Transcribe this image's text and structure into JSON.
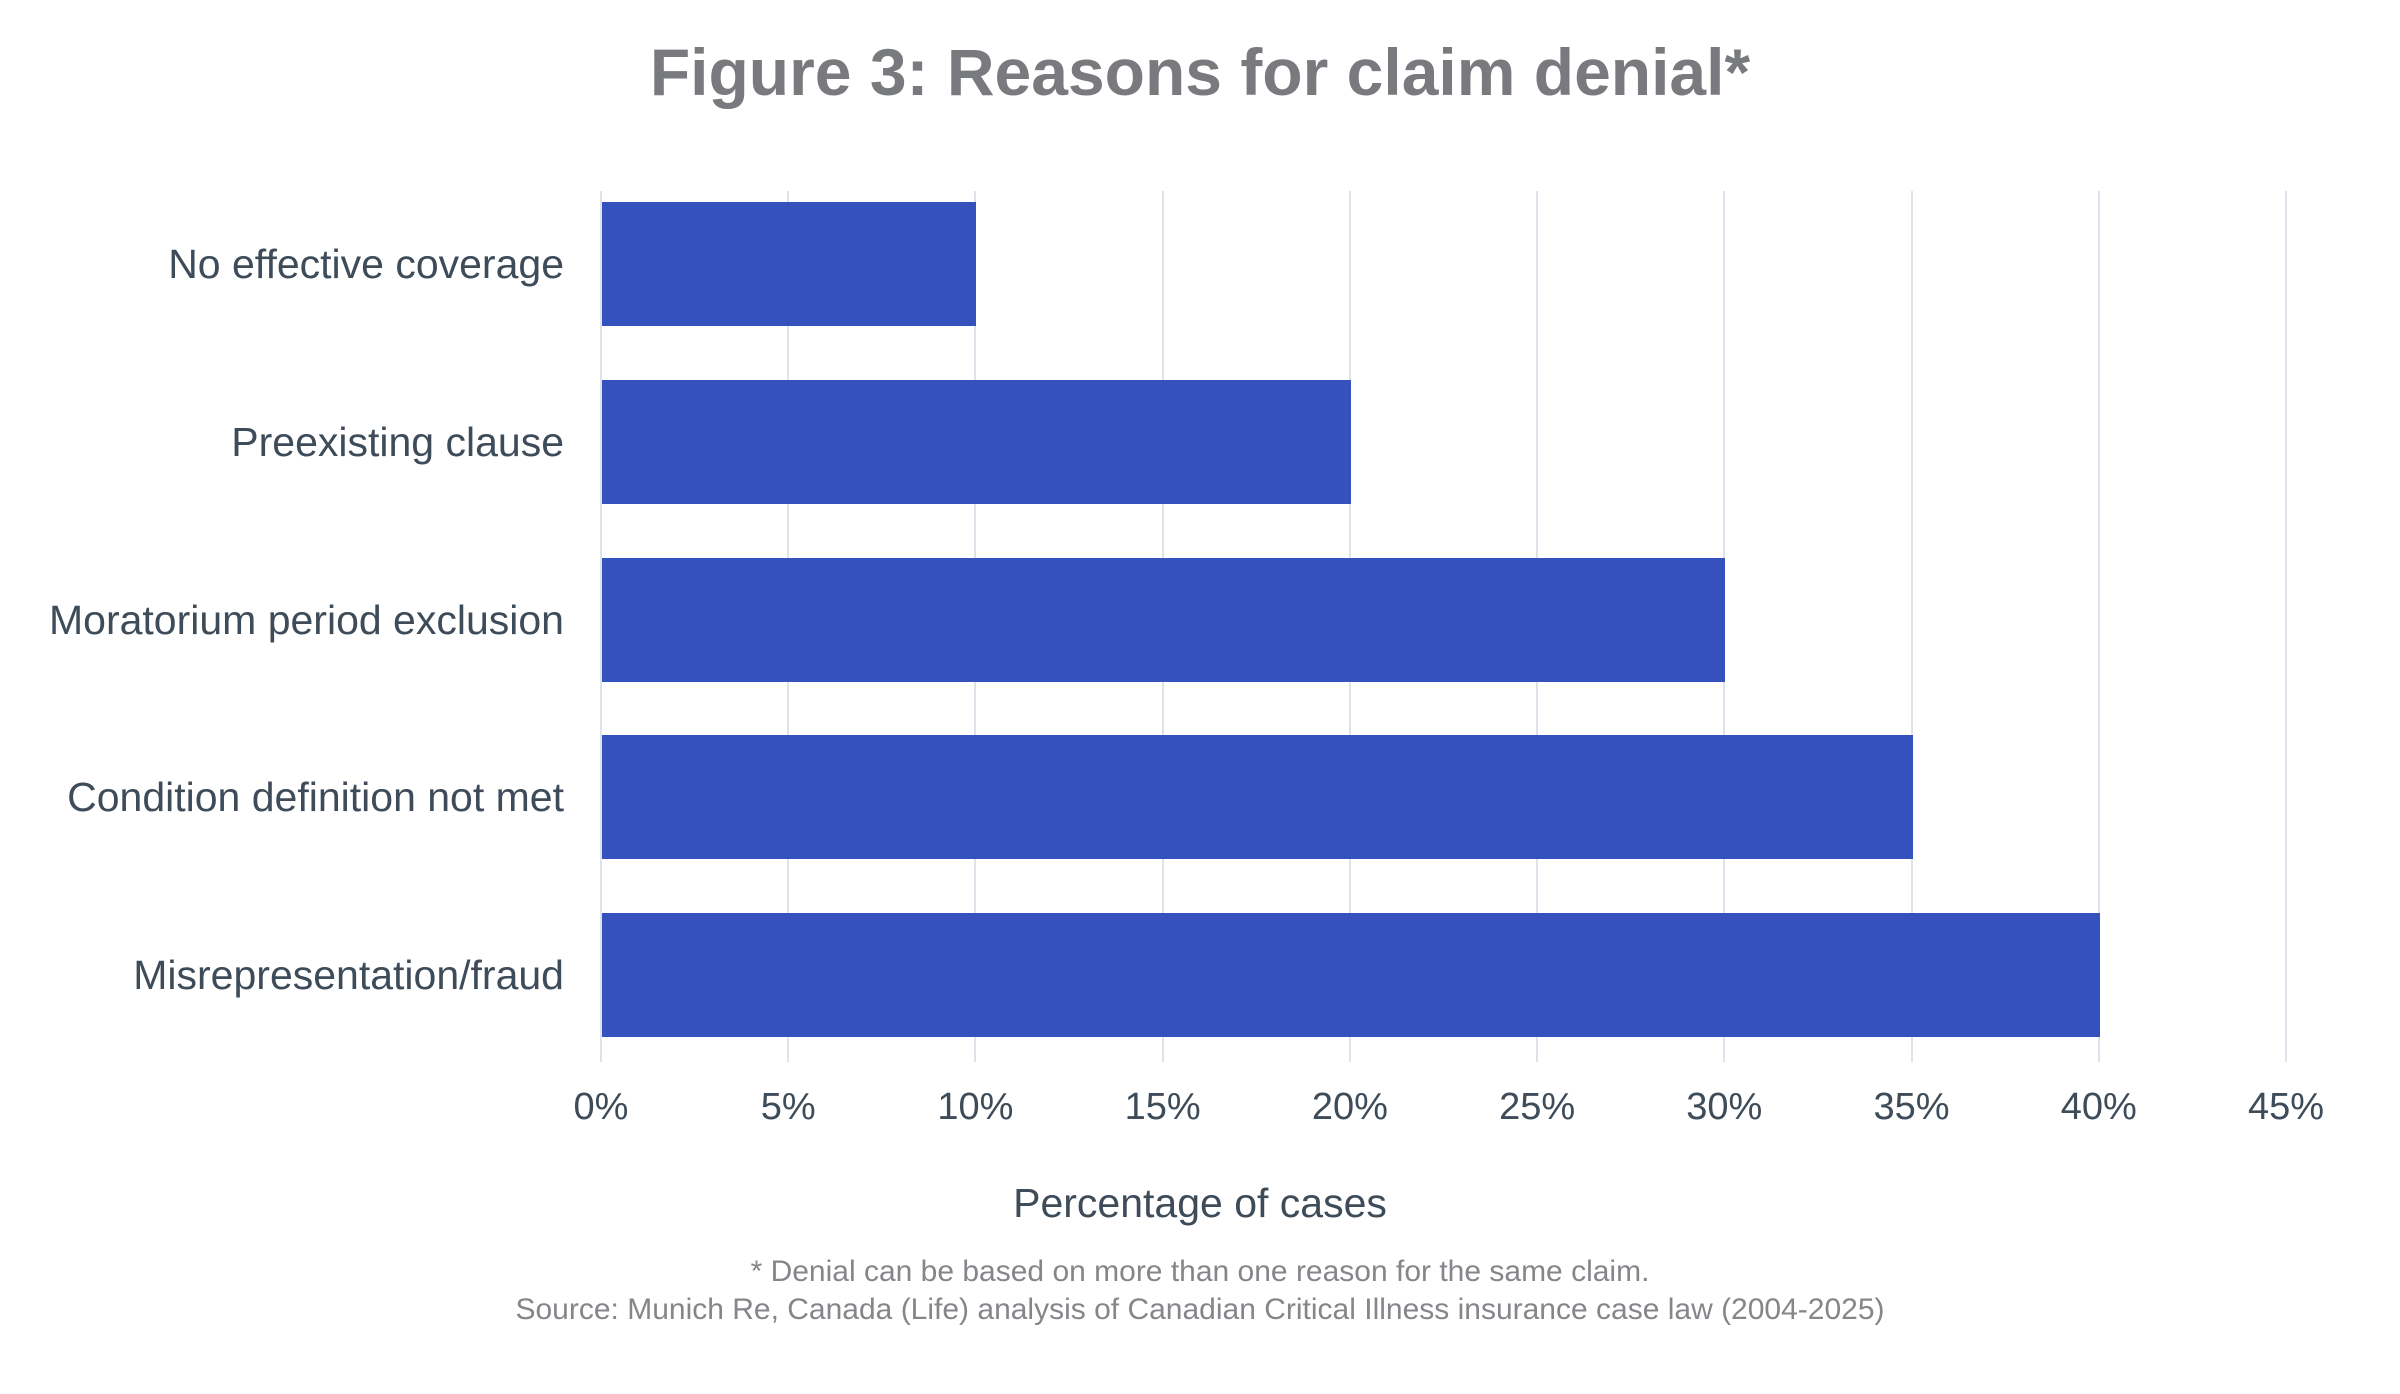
{
  "title": "Figure 3: Reasons for claim denial*",
  "chart_data": {
    "type": "bar",
    "orientation": "horizontal",
    "title": "Figure 3: Reasons for claim denial*",
    "categories": [
      "No effective coverage",
      "Preexisting clause",
      "Moratorium period exclusion",
      "Condition definition not met",
      "Misrepresentation/fraud"
    ],
    "values": [
      10,
      20,
      30,
      35,
      40
    ],
    "value_unit": "%",
    "xlabel": "Percentage of cases",
    "ylabel": "",
    "xlim": [
      0,
      45
    ],
    "xticks": [
      0,
      5,
      10,
      15,
      20,
      25,
      30,
      35,
      40,
      45
    ],
    "tick_labels": [
      "0%",
      "5%",
      "10%",
      "15%",
      "20%",
      "25%",
      "30%",
      "35%",
      "40%",
      "45%"
    ],
    "grid": "vertical",
    "legend": "none",
    "bar_color": "#3451bd",
    "gridline_color": "#dce3ec",
    "label_color": "#3e4c5a",
    "title_color": "#797a7d",
    "footnote_color": "#85868a"
  },
  "footnotes": [
    "* Denial can be based on more than one reason for the same claim.",
    "Source: Munich Re, Canada (Life) analysis of Canadian Critical Illness insurance case law (2004-2025)"
  ]
}
